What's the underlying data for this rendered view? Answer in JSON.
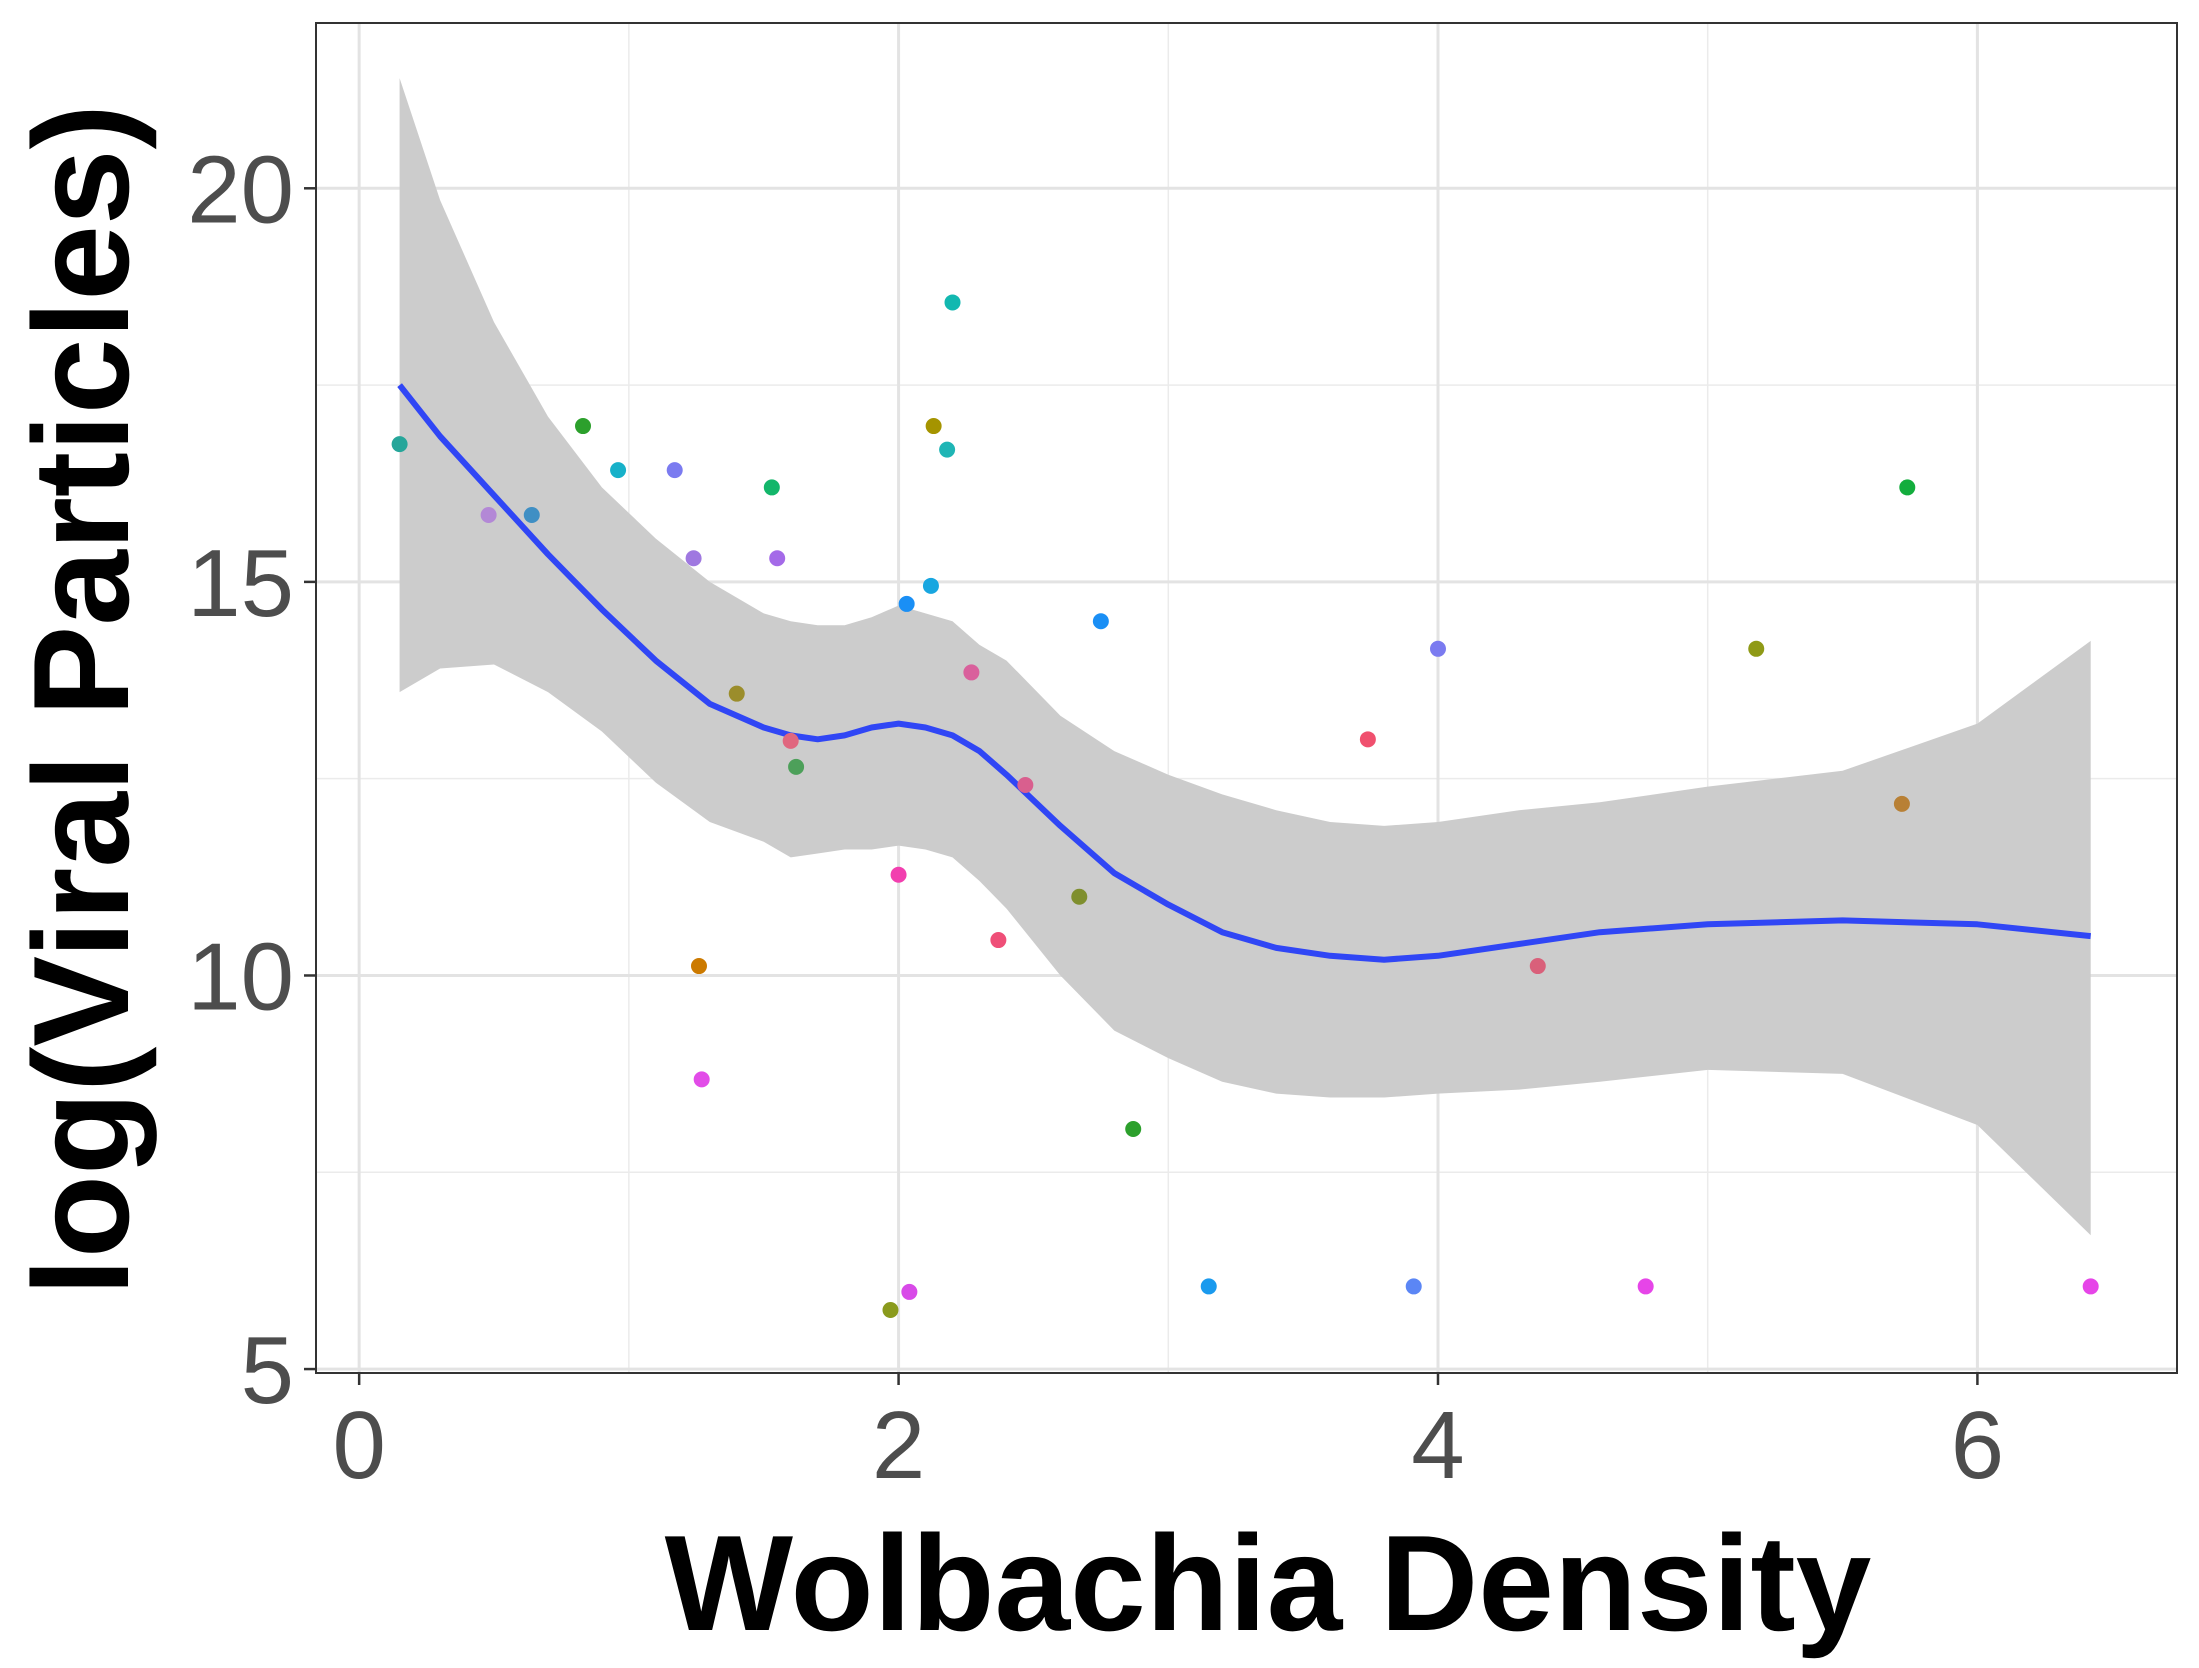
{
  "chart_data": {
    "type": "scatter",
    "title": "",
    "xlabel": "Wolbachia Density",
    "ylabel": "log(Viral Particles)",
    "xlim": [
      -0.16,
      6.74
    ],
    "ylim": [
      4.95,
      22.1
    ],
    "x_ticks": [
      0,
      2,
      4,
      6
    ],
    "y_ticks": [
      5,
      10,
      15,
      20
    ],
    "x_minor": [
      1,
      3,
      5
    ],
    "y_minor": [
      7.5,
      12.5,
      17.5
    ],
    "grid": true,
    "legend": "none",
    "points": [
      {
        "x": 0.15,
        "y": 16.75,
        "color": "#26a69a"
      },
      {
        "x": 0.48,
        "y": 15.85,
        "color": "#b388d6"
      },
      {
        "x": 0.64,
        "y": 15.85,
        "color": "#3f8fc4"
      },
      {
        "x": 0.83,
        "y": 16.98,
        "color": "#2ca02c"
      },
      {
        "x": 0.96,
        "y": 16.42,
        "color": "#17b1c9"
      },
      {
        "x": 1.17,
        "y": 16.42,
        "color": "#7b7bf0"
      },
      {
        "x": 1.24,
        "y": 15.3,
        "color": "#9f78e0"
      },
      {
        "x": 1.26,
        "y": 10.12,
        "color": "#cc7a00"
      },
      {
        "x": 1.27,
        "y": 8.68,
        "color": "#e24ce8"
      },
      {
        "x": 1.4,
        "y": 13.58,
        "color": "#9b8d2b"
      },
      {
        "x": 1.53,
        "y": 16.2,
        "color": "#13b66a"
      },
      {
        "x": 1.55,
        "y": 15.3,
        "color": "#a46ae8"
      },
      {
        "x": 1.6,
        "y": 12.98,
        "color": "#e0677f"
      },
      {
        "x": 1.62,
        "y": 12.65,
        "color": "#4da05a"
      },
      {
        "x": 1.97,
        "y": 5.75,
        "color": "#8a9a1d"
      },
      {
        "x": 2.0,
        "y": 11.28,
        "color": "#f23faf"
      },
      {
        "x": 2.03,
        "y": 14.72,
        "color": "#1a8ff5"
      },
      {
        "x": 2.04,
        "y": 5.98,
        "color": "#d84ae8"
      },
      {
        "x": 2.12,
        "y": 14.95,
        "color": "#18a6e0"
      },
      {
        "x": 2.13,
        "y": 16.98,
        "color": "#a59400"
      },
      {
        "x": 2.18,
        "y": 16.68,
        "color": "#1fb5b5"
      },
      {
        "x": 2.2,
        "y": 18.55,
        "color": "#12b8b0"
      },
      {
        "x": 2.27,
        "y": 13.85,
        "color": "#d9609c"
      },
      {
        "x": 2.37,
        "y": 10.45,
        "color": "#ef4f78"
      },
      {
        "x": 2.47,
        "y": 12.42,
        "color": "#d95f8e"
      },
      {
        "x": 2.67,
        "y": 11.0,
        "color": "#7f8f2e"
      },
      {
        "x": 2.75,
        "y": 14.5,
        "color": "#1a8ff5"
      },
      {
        "x": 2.87,
        "y": 8.05,
        "color": "#2ca02c"
      },
      {
        "x": 3.15,
        "y": 6.05,
        "color": "#1a9aee"
      },
      {
        "x": 3.74,
        "y": 13.0,
        "color": "#f0506e"
      },
      {
        "x": 3.91,
        "y": 6.05,
        "color": "#5b86f5"
      },
      {
        "x": 4.0,
        "y": 14.15,
        "color": "#7b7bf0"
      },
      {
        "x": 4.37,
        "y": 10.12,
        "color": "#d9607a"
      },
      {
        "x": 4.77,
        "y": 6.05,
        "color": "#e645e8"
      },
      {
        "x": 5.18,
        "y": 14.15,
        "color": "#8f9a16"
      },
      {
        "x": 5.72,
        "y": 12.18,
        "color": "#b88035"
      },
      {
        "x": 5.74,
        "y": 16.2,
        "color": "#13ad3d"
      },
      {
        "x": 6.42,
        "y": 6.05,
        "color": "#e645e8"
      }
    ],
    "smooth": {
      "color": "#3046f5",
      "ribbon_color": "#cccccc",
      "x": [
        0.15,
        0.3,
        0.5,
        0.7,
        0.9,
        1.1,
        1.3,
        1.5,
        1.6,
        1.7,
        1.8,
        1.9,
        2.0,
        2.1,
        2.2,
        2.3,
        2.4,
        2.6,
        2.8,
        3.0,
        3.2,
        3.4,
        3.6,
        3.8,
        4.0,
        4.3,
        4.6,
        5.0,
        5.5,
        6.0,
        6.42
      ],
      "fit": [
        17.5,
        16.85,
        16.1,
        15.35,
        14.65,
        14.0,
        13.45,
        13.15,
        13.05,
        13.0,
        13.05,
        13.15,
        13.2,
        13.15,
        13.05,
        12.85,
        12.55,
        11.9,
        11.3,
        10.9,
        10.55,
        10.35,
        10.25,
        10.2,
        10.25,
        10.4,
        10.55,
        10.65,
        10.7,
        10.65,
        10.5
      ],
      "lower": [
        13.6,
        13.9,
        13.95,
        13.6,
        13.1,
        12.45,
        11.95,
        11.7,
        11.5,
        11.55,
        11.6,
        11.6,
        11.65,
        11.6,
        11.5,
        11.2,
        10.85,
        10.0,
        9.3,
        8.95,
        8.65,
        8.5,
        8.45,
        8.45,
        8.5,
        8.55,
        8.65,
        8.8,
        8.75,
        8.1,
        6.7
      ],
      "upper": [
        21.4,
        19.85,
        18.3,
        17.1,
        16.2,
        15.55,
        15.0,
        14.6,
        14.5,
        14.45,
        14.45,
        14.55,
        14.7,
        14.6,
        14.5,
        14.2,
        14.0,
        13.3,
        12.85,
        12.55,
        12.3,
        12.1,
        11.95,
        11.9,
        11.95,
        12.1,
        12.2,
        12.4,
        12.6,
        13.2,
        14.25
      ]
    }
  }
}
